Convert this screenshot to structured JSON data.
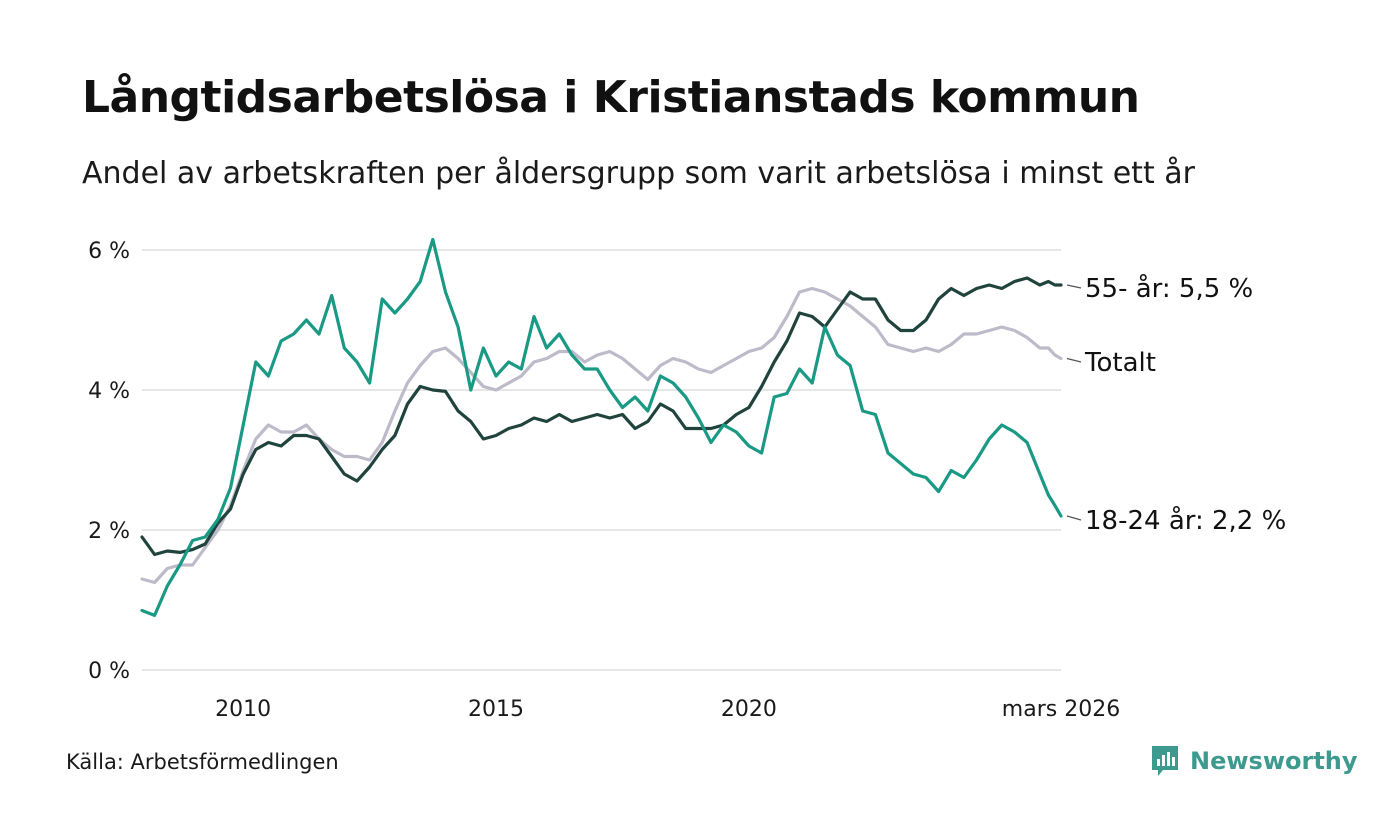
{
  "title": "Långtidsarbetslösa i Kristianstads kommun",
  "subtitle": "Andel av arbetskraften per åldersgrupp som varit arbetslösa i minst ett år",
  "source": "Källa: Arbetsförmedlingen",
  "brand": "Newsworthy",
  "colors": {
    "youth": "#1a9985",
    "senior": "#20443d",
    "total": "#bdbaca",
    "grid": "#dddddd",
    "brand": "#3d9a8e"
  },
  "chart_data": {
    "type": "line",
    "title": "Långtidsarbetslösa i Kristianstads kommun",
    "xlabel": "",
    "ylabel": "",
    "xlim": [
      2008.0,
      2026.17
    ],
    "ylim": [
      0,
      6
    ],
    "yticks": [
      0,
      2,
      4,
      6
    ],
    "ytick_labels": [
      "0 %",
      "2 %",
      "4 %",
      "6 %"
    ],
    "xticks": [
      2010,
      2015,
      2020,
      2026.17
    ],
    "xtick_labels": [
      "2010",
      "2015",
      "2020",
      "mars 2026"
    ],
    "series": [
      {
        "name": "18-24 år",
        "label": "18-24 år: 2,2 %",
        "color": "#1a9985",
        "points": [
          [
            2008.0,
            0.85
          ],
          [
            2008.25,
            0.78
          ],
          [
            2008.5,
            1.2
          ],
          [
            2008.75,
            1.5
          ],
          [
            2009.0,
            1.85
          ],
          [
            2009.25,
            1.9
          ],
          [
            2009.5,
            2.15
          ],
          [
            2009.75,
            2.6
          ],
          [
            2010.0,
            3.5
          ],
          [
            2010.25,
            4.4
          ],
          [
            2010.5,
            4.2
          ],
          [
            2010.75,
            4.7
          ],
          [
            2011.0,
            4.8
          ],
          [
            2011.25,
            5.0
          ],
          [
            2011.5,
            4.8
          ],
          [
            2011.75,
            5.35
          ],
          [
            2012.0,
            4.6
          ],
          [
            2012.25,
            4.4
          ],
          [
            2012.5,
            4.1
          ],
          [
            2012.75,
            5.3
          ],
          [
            2013.0,
            5.1
          ],
          [
            2013.25,
            5.3
          ],
          [
            2013.5,
            5.55
          ],
          [
            2013.75,
            6.15
          ],
          [
            2014.0,
            5.4
          ],
          [
            2014.25,
            4.9
          ],
          [
            2014.5,
            4.0
          ],
          [
            2014.75,
            4.6
          ],
          [
            2015.0,
            4.2
          ],
          [
            2015.25,
            4.4
          ],
          [
            2015.5,
            4.3
          ],
          [
            2015.75,
            5.05
          ],
          [
            2016.0,
            4.6
          ],
          [
            2016.25,
            4.8
          ],
          [
            2016.5,
            4.5
          ],
          [
            2016.75,
            4.3
          ],
          [
            2017.0,
            4.3
          ],
          [
            2017.25,
            4.0
          ],
          [
            2017.5,
            3.75
          ],
          [
            2017.75,
            3.9
          ],
          [
            2018.0,
            3.7
          ],
          [
            2018.25,
            4.2
          ],
          [
            2018.5,
            4.1
          ],
          [
            2018.75,
            3.9
          ],
          [
            2019.0,
            3.6
          ],
          [
            2019.25,
            3.25
          ],
          [
            2019.5,
            3.5
          ],
          [
            2019.75,
            3.4
          ],
          [
            2020.0,
            3.2
          ],
          [
            2020.25,
            3.1
          ],
          [
            2020.5,
            3.9
          ],
          [
            2020.75,
            3.95
          ],
          [
            2021.0,
            4.3
          ],
          [
            2021.25,
            4.1
          ],
          [
            2021.5,
            4.9
          ],
          [
            2021.75,
            4.5
          ],
          [
            2022.0,
            4.35
          ],
          [
            2022.25,
            3.7
          ],
          [
            2022.5,
            3.65
          ],
          [
            2022.75,
            3.1
          ],
          [
            2023.0,
            2.95
          ],
          [
            2023.25,
            2.8
          ],
          [
            2023.5,
            2.75
          ],
          [
            2023.75,
            2.55
          ],
          [
            2024.0,
            2.85
          ],
          [
            2024.25,
            2.75
          ],
          [
            2024.5,
            3.0
          ],
          [
            2024.75,
            3.3
          ],
          [
            2025.0,
            3.5
          ],
          [
            2025.25,
            3.4
          ],
          [
            2025.5,
            3.25
          ],
          [
            2025.75,
            2.8
          ],
          [
            2025.92,
            2.5
          ],
          [
            2026.05,
            2.35
          ],
          [
            2026.17,
            2.2
          ]
        ]
      },
      {
        "name": "55- år",
        "label": "55- år: 5,5 %",
        "color": "#20443d",
        "points": [
          [
            2008.0,
            1.9
          ],
          [
            2008.25,
            1.65
          ],
          [
            2008.5,
            1.7
          ],
          [
            2008.75,
            1.68
          ],
          [
            2009.0,
            1.72
          ],
          [
            2009.25,
            1.8
          ],
          [
            2009.5,
            2.1
          ],
          [
            2009.75,
            2.3
          ],
          [
            2010.0,
            2.8
          ],
          [
            2010.25,
            3.15
          ],
          [
            2010.5,
            3.25
          ],
          [
            2010.75,
            3.2
          ],
          [
            2011.0,
            3.35
          ],
          [
            2011.25,
            3.35
          ],
          [
            2011.5,
            3.3
          ],
          [
            2011.75,
            3.05
          ],
          [
            2012.0,
            2.8
          ],
          [
            2012.25,
            2.7
          ],
          [
            2012.5,
            2.9
          ],
          [
            2012.75,
            3.15
          ],
          [
            2013.0,
            3.35
          ],
          [
            2013.25,
            3.8
          ],
          [
            2013.5,
            4.05
          ],
          [
            2013.75,
            4.0
          ],
          [
            2014.0,
            3.98
          ],
          [
            2014.25,
            3.7
          ],
          [
            2014.5,
            3.55
          ],
          [
            2014.75,
            3.3
          ],
          [
            2015.0,
            3.35
          ],
          [
            2015.25,
            3.45
          ],
          [
            2015.5,
            3.5
          ],
          [
            2015.75,
            3.6
          ],
          [
            2016.0,
            3.55
          ],
          [
            2016.25,
            3.65
          ],
          [
            2016.5,
            3.55
          ],
          [
            2016.75,
            3.6
          ],
          [
            2017.0,
            3.65
          ],
          [
            2017.25,
            3.6
          ],
          [
            2017.5,
            3.65
          ],
          [
            2017.75,
            3.45
          ],
          [
            2018.0,
            3.55
          ],
          [
            2018.25,
            3.8
          ],
          [
            2018.5,
            3.7
          ],
          [
            2018.75,
            3.45
          ],
          [
            2019.0,
            3.45
          ],
          [
            2019.25,
            3.45
          ],
          [
            2019.5,
            3.5
          ],
          [
            2019.75,
            3.65
          ],
          [
            2020.0,
            3.75
          ],
          [
            2020.25,
            4.05
          ],
          [
            2020.5,
            4.4
          ],
          [
            2020.75,
            4.7
          ],
          [
            2021.0,
            5.1
          ],
          [
            2021.25,
            5.05
          ],
          [
            2021.5,
            4.9
          ],
          [
            2021.75,
            5.15
          ],
          [
            2022.0,
            5.4
          ],
          [
            2022.25,
            5.3
          ],
          [
            2022.5,
            5.3
          ],
          [
            2022.75,
            5.0
          ],
          [
            2023.0,
            4.85
          ],
          [
            2023.25,
            4.85
          ],
          [
            2023.5,
            5.0
          ],
          [
            2023.75,
            5.3
          ],
          [
            2024.0,
            5.45
          ],
          [
            2024.25,
            5.35
          ],
          [
            2024.5,
            5.45
          ],
          [
            2024.75,
            5.5
          ],
          [
            2025.0,
            5.45
          ],
          [
            2025.25,
            5.55
          ],
          [
            2025.5,
            5.6
          ],
          [
            2025.75,
            5.5
          ],
          [
            2025.92,
            5.55
          ],
          [
            2026.05,
            5.5
          ],
          [
            2026.17,
            5.5
          ]
        ]
      },
      {
        "name": "Totalt",
        "label": "Totalt",
        "color": "#bdbaca",
        "points": [
          [
            2008.0,
            1.3
          ],
          [
            2008.25,
            1.25
          ],
          [
            2008.5,
            1.45
          ],
          [
            2008.75,
            1.5
          ],
          [
            2009.0,
            1.5
          ],
          [
            2009.25,
            1.75
          ],
          [
            2009.5,
            2.0
          ],
          [
            2009.75,
            2.35
          ],
          [
            2010.0,
            2.85
          ],
          [
            2010.25,
            3.3
          ],
          [
            2010.5,
            3.5
          ],
          [
            2010.75,
            3.4
          ],
          [
            2011.0,
            3.4
          ],
          [
            2011.25,
            3.5
          ],
          [
            2011.5,
            3.3
          ],
          [
            2011.75,
            3.15
          ],
          [
            2012.0,
            3.05
          ],
          [
            2012.25,
            3.05
          ],
          [
            2012.5,
            3.0
          ],
          [
            2012.75,
            3.25
          ],
          [
            2013.0,
            3.7
          ],
          [
            2013.25,
            4.1
          ],
          [
            2013.5,
            4.35
          ],
          [
            2013.75,
            4.55
          ],
          [
            2014.0,
            4.6
          ],
          [
            2014.25,
            4.45
          ],
          [
            2014.5,
            4.25
          ],
          [
            2014.75,
            4.05
          ],
          [
            2015.0,
            4.0
          ],
          [
            2015.25,
            4.1
          ],
          [
            2015.5,
            4.2
          ],
          [
            2015.75,
            4.4
          ],
          [
            2016.0,
            4.45
          ],
          [
            2016.25,
            4.55
          ],
          [
            2016.5,
            4.55
          ],
          [
            2016.75,
            4.4
          ],
          [
            2017.0,
            4.5
          ],
          [
            2017.25,
            4.55
          ],
          [
            2017.5,
            4.45
          ],
          [
            2017.75,
            4.3
          ],
          [
            2018.0,
            4.15
          ],
          [
            2018.25,
            4.35
          ],
          [
            2018.5,
            4.45
          ],
          [
            2018.75,
            4.4
          ],
          [
            2019.0,
            4.3
          ],
          [
            2019.25,
            4.25
          ],
          [
            2019.5,
            4.35
          ],
          [
            2019.75,
            4.45
          ],
          [
            2020.0,
            4.55
          ],
          [
            2020.25,
            4.6
          ],
          [
            2020.5,
            4.75
          ],
          [
            2020.75,
            5.05
          ],
          [
            2021.0,
            5.4
          ],
          [
            2021.25,
            5.45
          ],
          [
            2021.5,
            5.4
          ],
          [
            2021.75,
            5.3
          ],
          [
            2022.0,
            5.2
          ],
          [
            2022.25,
            5.05
          ],
          [
            2022.5,
            4.9
          ],
          [
            2022.75,
            4.65
          ],
          [
            2023.0,
            4.6
          ],
          [
            2023.25,
            4.55
          ],
          [
            2023.5,
            4.6
          ],
          [
            2023.75,
            4.55
          ],
          [
            2024.0,
            4.65
          ],
          [
            2024.25,
            4.8
          ],
          [
            2024.5,
            4.8
          ],
          [
            2024.75,
            4.85
          ],
          [
            2025.0,
            4.9
          ],
          [
            2025.25,
            4.85
          ],
          [
            2025.5,
            4.75
          ],
          [
            2025.75,
            4.6
          ],
          [
            2025.92,
            4.6
          ],
          [
            2026.05,
            4.5
          ],
          [
            2026.17,
            4.45
          ]
        ]
      }
    ]
  }
}
